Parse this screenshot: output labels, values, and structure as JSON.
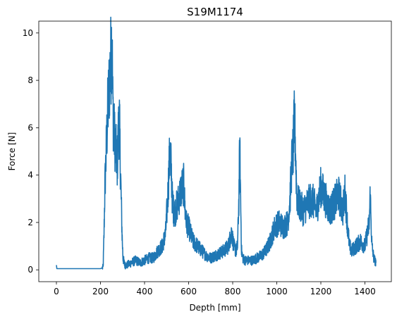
{
  "chart_data": {
    "type": "line",
    "title": "S19M1174",
    "xlabel": "Depth [mm]",
    "ylabel": "Force [N]",
    "xlim": [
      -80,
      1520
    ],
    "ylim": [
      -0.5,
      10.5
    ],
    "xticks": [
      0,
      200,
      400,
      600,
      800,
      1000,
      1200,
      1400
    ],
    "yticks": [
      0,
      2,
      4,
      6,
      8,
      10
    ],
    "grid": false,
    "line_color": "#1f77b4",
    "series": [
      {
        "x": [
          0,
          2,
          5,
          10,
          50,
          100,
          150,
          200,
          212,
          216,
          220,
          226,
          232,
          238,
          244,
          248,
          252,
          256,
          260,
          265,
          270,
          276,
          282,
          286,
          290,
          294,
          298,
          302,
          310,
          320,
          340,
          360,
          380,
          400,
          420,
          440,
          460,
          480,
          495,
          505,
          512,
          518,
          522,
          526,
          532,
          540,
          550,
          560,
          570,
          578,
          584,
          590,
          600,
          620,
          640,
          660,
          680,
          700,
          720,
          740,
          760,
          780,
          795,
          805,
          815,
          822,
          828,
          832,
          836,
          840,
          846,
          855,
          870,
          890,
          910,
          930,
          950,
          970,
          990,
          1010,
          1030,
          1050,
          1060,
          1068,
          1074,
          1080,
          1084,
          1088,
          1092,
          1100,
          1120,
          1140,
          1160,
          1180,
          1200,
          1220,
          1240,
          1260,
          1280,
          1300,
          1310,
          1320,
          1330,
          1340,
          1360,
          1380,
          1400,
          1410,
          1420,
          1424,
          1428,
          1432,
          1440,
          1450
        ],
        "y": [
          0.2,
          0.05,
          0.05,
          0.05,
          0.05,
          0.05,
          0.05,
          0.05,
          0.1,
          1.5,
          3.5,
          5.0,
          6.5,
          7.5,
          8.5,
          9.0,
          10.0,
          7.0,
          6.0,
          5.5,
          5.0,
          4.5,
          6.0,
          6.2,
          4.5,
          3.0,
          1.5,
          0.5,
          0.2,
          0.2,
          0.3,
          0.4,
          0.3,
          0.4,
          0.5,
          0.5,
          0.8,
          1.0,
          1.5,
          3.0,
          4.5,
          4.8,
          4.0,
          3.0,
          2.5,
          2.5,
          2.8,
          3.2,
          3.5,
          3.6,
          2.5,
          2.0,
          1.8,
          1.2,
          1.0,
          0.8,
          0.6,
          0.5,
          0.6,
          0.7,
          0.8,
          1.0,
          1.6,
          1.0,
          0.8,
          1.0,
          3.0,
          5.2,
          3.0,
          0.8,
          0.5,
          0.4,
          0.4,
          0.4,
          0.5,
          0.6,
          0.8,
          1.2,
          1.8,
          2.0,
          1.8,
          2.0,
          3.0,
          4.5,
          5.0,
          6.3,
          5.5,
          4.0,
          3.0,
          2.8,
          2.5,
          2.8,
          3.0,
          2.5,
          3.5,
          3.0,
          2.5,
          2.8,
          3.2,
          2.5,
          3.3,
          2.0,
          1.0,
          0.8,
          1.0,
          1.2,
          1.0,
          1.5,
          2.0,
          3.2,
          2.0,
          1.0,
          0.5,
          0.3
        ]
      }
    ]
  }
}
